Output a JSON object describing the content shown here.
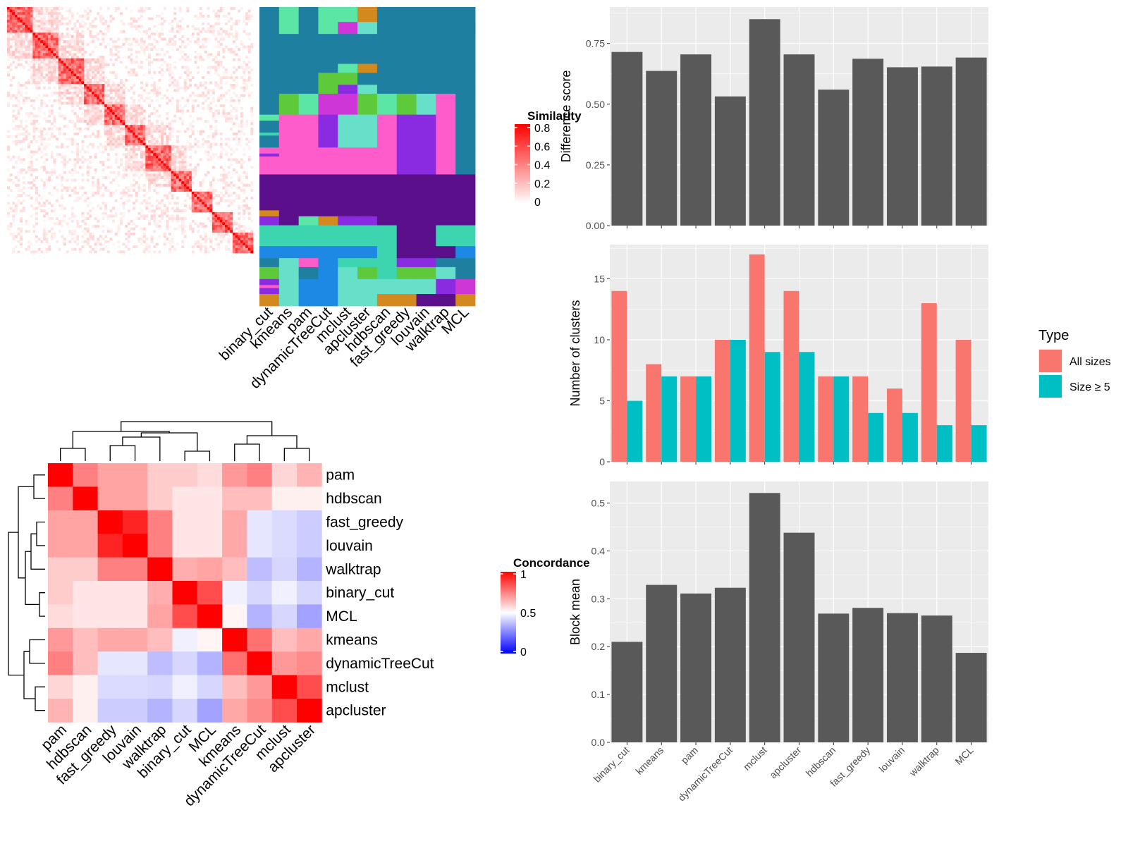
{
  "methods": [
    "binary_cut",
    "kmeans",
    "pam",
    "dynamicTreeCut",
    "mclust",
    "apcluster",
    "hdbscan",
    "fast_greedy",
    "louvain",
    "walktrap",
    "MCL"
  ],
  "colors": {
    "bar_gray": "#595959",
    "panel_bg": "#ebebeb",
    "grid": "#ffffff",
    "all_sizes": "#f8766d",
    "size_ge5": "#00bfc4",
    "red": "#ff0000",
    "blue": "#0000ff"
  },
  "similarity_legend": {
    "title": "Similarity",
    "ticks": [
      "0.8",
      "0.6",
      "0.4",
      "0.2",
      "0"
    ]
  },
  "concordance_legend": {
    "title": "Concordance",
    "ticks": [
      "1",
      "0.5",
      "0"
    ]
  },
  "type_legend": {
    "title": "Type",
    "items": [
      "All sizes",
      "Size ≥ 5"
    ]
  },
  "concordance_order": [
    "pam",
    "hdbscan",
    "fast_greedy",
    "louvain",
    "walktrap",
    "binary_cut",
    "MCL",
    "kmeans",
    "dynamicTreeCut",
    "mclust",
    "apcluster"
  ],
  "concordance_matrix": [
    [
      1.0,
      0.75,
      0.68,
      0.68,
      0.6,
      0.6,
      0.57,
      0.7,
      0.75,
      0.58,
      0.65
    ],
    [
      0.75,
      1.0,
      0.68,
      0.68,
      0.6,
      0.55,
      0.55,
      0.63,
      0.63,
      0.53,
      0.53
    ],
    [
      0.68,
      0.68,
      1.0,
      0.93,
      0.75,
      0.55,
      0.55,
      0.67,
      0.45,
      0.43,
      0.4
    ],
    [
      0.68,
      0.68,
      0.93,
      1.0,
      0.75,
      0.55,
      0.55,
      0.67,
      0.45,
      0.43,
      0.4
    ],
    [
      0.6,
      0.6,
      0.75,
      0.75,
      1.0,
      0.66,
      0.68,
      0.63,
      0.37,
      0.42,
      0.35
    ],
    [
      0.6,
      0.55,
      0.55,
      0.55,
      0.66,
      1.0,
      0.85,
      0.47,
      0.42,
      0.47,
      0.42
    ],
    [
      0.57,
      0.55,
      0.55,
      0.55,
      0.68,
      0.85,
      1.0,
      0.52,
      0.35,
      0.42,
      0.32
    ],
    [
      0.7,
      0.63,
      0.67,
      0.67,
      0.63,
      0.47,
      0.52,
      1.0,
      0.78,
      0.63,
      0.67
    ],
    [
      0.75,
      0.63,
      0.45,
      0.45,
      0.37,
      0.42,
      0.35,
      0.78,
      1.0,
      0.7,
      0.73
    ],
    [
      0.58,
      0.53,
      0.43,
      0.43,
      0.42,
      0.47,
      0.42,
      0.63,
      0.7,
      1.0,
      0.85
    ],
    [
      0.65,
      0.53,
      0.4,
      0.4,
      0.35,
      0.42,
      0.32,
      0.67,
      0.73,
      0.85,
      1.0
    ]
  ],
  "chart_data": [
    {
      "type": "heatmap",
      "title": "",
      "description_unprinted": false,
      "values_kind": "term similarity matrix",
      "legend_title": "Similarity",
      "legend_ticks": [
        0,
        0.2,
        0.4,
        0.6,
        0.8
      ]
    },
    {
      "type": "heatmap",
      "x_labels": [
        "binary_cut",
        "kmeans",
        "pam",
        "dynamicTreeCut",
        "mclust",
        "apcluster",
        "hdbscan",
        "fast_greedy",
        "louvain",
        "walktrap",
        "MCL"
      ]
    },
    {
      "type": "bar",
      "categories": [
        "binary_cut",
        "kmeans",
        "pam",
        "dynamicTreeCut",
        "mclust",
        "apcluster",
        "hdbscan",
        "fast_greedy",
        "louvain",
        "walktrap",
        "MCL"
      ],
      "values": [
        0.715,
        0.637,
        0.705,
        0.532,
        0.85,
        0.705,
        0.56,
        0.687,
        0.652,
        0.655,
        0.692
      ],
      "ylabel": "Difference score",
      "ylim": [
        0,
        0.9
      ],
      "yticks": [
        "0.00",
        "0.25",
        "0.50",
        "0.75"
      ],
      "grid": true
    },
    {
      "type": "bar",
      "categories": [
        "binary_cut",
        "kmeans",
        "pam",
        "dynamicTreeCut",
        "mclust",
        "apcluster",
        "hdbscan",
        "fast_greedy",
        "louvain",
        "walktrap",
        "MCL"
      ],
      "series": [
        {
          "name": "All sizes",
          "values": [
            14,
            8,
            7,
            10,
            17,
            14,
            7,
            7,
            6,
            13,
            10
          ]
        },
        {
          "name": "Size ≥ 5",
          "values": [
            5,
            7,
            7,
            10,
            9,
            9,
            7,
            4,
            4,
            3,
            3
          ]
        }
      ],
      "ylabel": "Number of clusters",
      "ylim": [
        0,
        17.8
      ],
      "yticks": [
        "0",
        "5",
        "10",
        "15"
      ],
      "legend_title": "Type",
      "legend": "right",
      "grid": true
    },
    {
      "type": "bar",
      "categories": [
        "binary_cut",
        "kmeans",
        "pam",
        "dynamicTreeCut",
        "mclust",
        "apcluster",
        "hdbscan",
        "fast_greedy",
        "louvain",
        "walktrap",
        "MCL"
      ],
      "values": [
        0.21,
        0.329,
        0.311,
        0.323,
        0.521,
        0.438,
        0.269,
        0.281,
        0.27,
        0.265,
        0.187
      ],
      "ylabel": "Block mean",
      "ylim": [
        0,
        0.545
      ],
      "yticks": [
        "0.0",
        "0.1",
        "0.2",
        "0.3",
        "0.4",
        "0.5"
      ],
      "grid": true
    },
    {
      "type": "heatmap",
      "title": "",
      "legend_title": "Concordance",
      "legend_ticks": [
        0,
        0.5,
        1
      ],
      "rows": [
        "pam",
        "hdbscan",
        "fast_greedy",
        "louvain",
        "walktrap",
        "binary_cut",
        "MCL",
        "kmeans",
        "dynamicTreeCut",
        "mclust",
        "apcluster"
      ],
      "cols": [
        "pam",
        "hdbscan",
        "fast_greedy",
        "louvain",
        "walktrap",
        "binary_cut",
        "MCL",
        "kmeans",
        "dynamicTreeCut",
        "mclust",
        "apcluster"
      ]
    }
  ]
}
